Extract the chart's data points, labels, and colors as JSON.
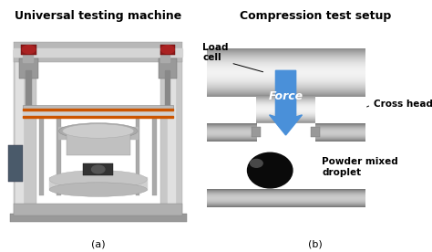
{
  "bg_color": "#ffffff",
  "title_a": "Universal testing machine",
  "title_b": "Compression test setup",
  "label_a": "(a)",
  "label_b": "(b)",
  "label_load_cell": "Load\ncell",
  "label_force": "Force",
  "label_cross_head": "Cross head",
  "label_powder": "Powder mixed\ndroplet",
  "arrow_color": "#4a90d9",
  "black_droplet": "#0a0a0a",
  "text_color": "#000000",
  "font_size_title": 9,
  "font_size_label": 8,
  "font_size_annotation": 7.5,
  "font_size_force": 9,
  "photo_bg": "#e8e8e8"
}
